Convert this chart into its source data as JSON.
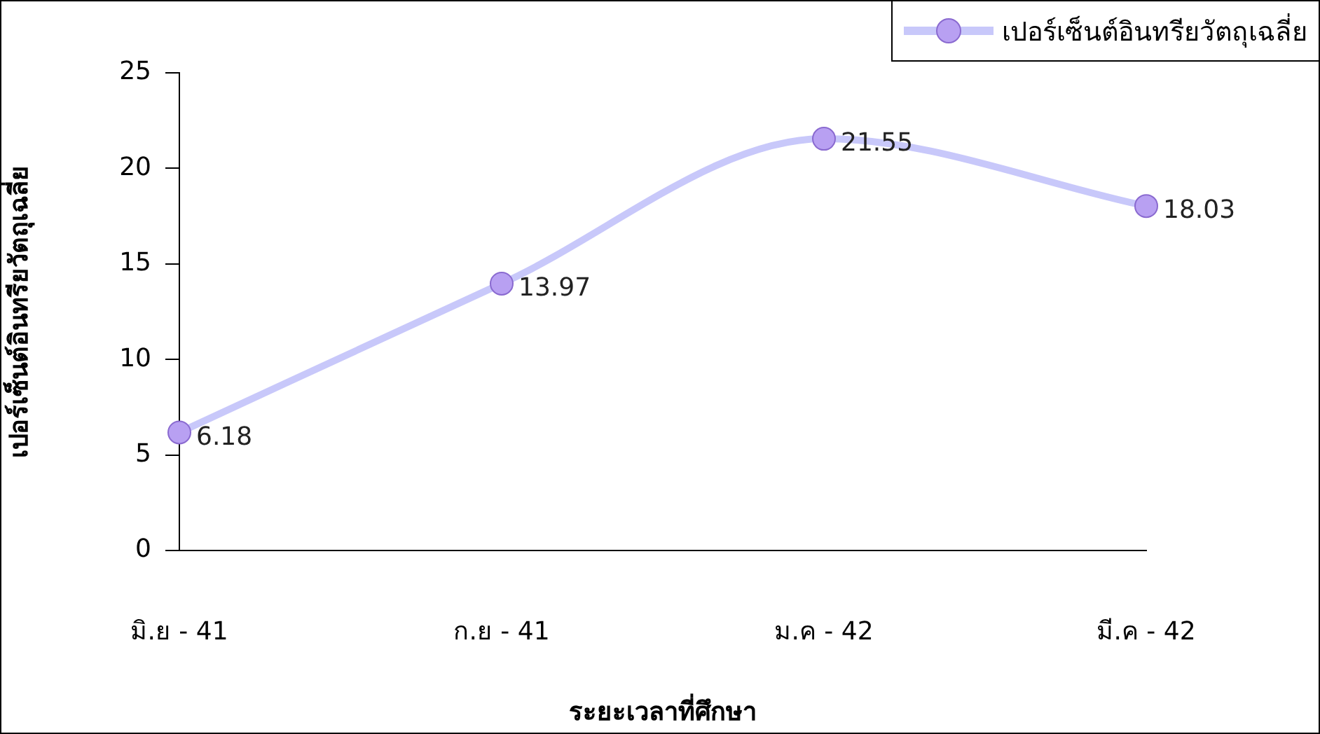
{
  "chart_data": {
    "type": "line",
    "xlabel": "ระยะเวลาที่ศึกษา",
    "ylabel": "เปอร์เซ็นต์อินทรียวัตถุเฉลี่ย",
    "categories": [
      "มิ.ย - 41",
      "ก.ย - 41",
      "ม.ค - 42",
      "มี.ค - 42"
    ],
    "series": [
      {
        "name": "เปอร์เซ็นต์อินทรียวัตถุเฉลี่ย",
        "color": "#c8c8fa",
        "values": [
          6.18,
          13.97,
          21.55,
          18.03
        ]
      }
    ],
    "ylim": [
      0,
      25
    ],
    "yticks": [
      0,
      5,
      10,
      15,
      20,
      25
    ],
    "grid": false,
    "legend": "top right",
    "marker": "circle",
    "data_labels": true
  }
}
